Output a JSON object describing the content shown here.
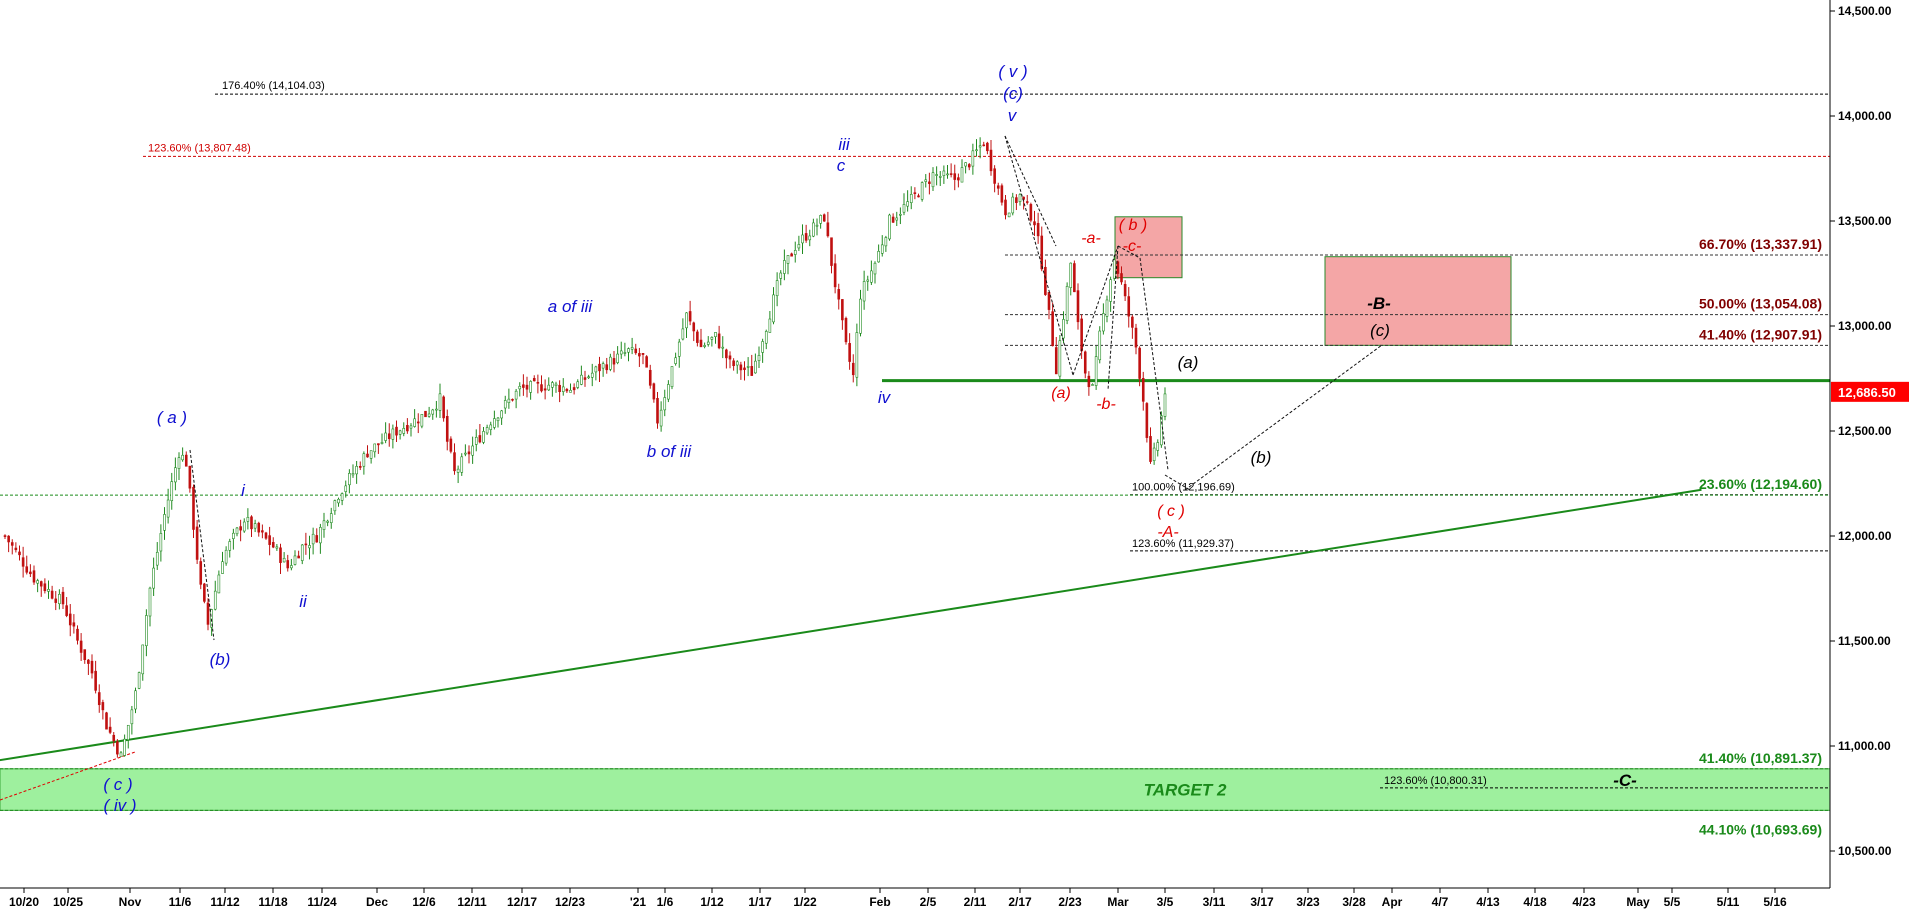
{
  "chart_data": {
    "type": "candlestick",
    "y_axis": {
      "ticks": [
        "14,500.00",
        "14,000.00",
        "13,500.00",
        "13,000.00",
        "12,500.00",
        "12,000.00",
        "11,500.00",
        "11,000.00",
        "10,500.00"
      ],
      "range": [
        10400,
        14530
      ],
      "position": "right"
    },
    "x_axis": {
      "ticks": [
        "10/20",
        "10/25",
        "Nov",
        "11/6",
        "11/12",
        "11/18",
        "11/24",
        "Dec",
        "12/6",
        "12/11",
        "12/17",
        "12/23",
        "'21",
        "1/6",
        "1/12",
        "1/17",
        "1/22",
        "Feb",
        "2/5",
        "2/11",
        "2/17",
        "2/23",
        "Mar",
        "3/5",
        "3/11",
        "3/17",
        "3/23",
        "3/28",
        "Apr",
        "4/7",
        "4/13",
        "4/18",
        "4/23",
        "May",
        "5/5",
        "5/11",
        "5/16"
      ]
    },
    "last_price": {
      "label": "12,686.50",
      "value": 12686.5,
      "color": "#ff0000"
    },
    "price_path": [
      {
        "day": 0,
        "close": 12000
      },
      {
        "day": 4,
        "close": 11800
      },
      {
        "day": 8,
        "close": 11680
      },
      {
        "day": 10,
        "close": 11500
      },
      {
        "day": 12,
        "close": 11350
      },
      {
        "day": 14,
        "close": 11100
      },
      {
        "day": 16,
        "close": 10950
      },
      {
        "day": 18,
        "close": 11250
      },
      {
        "day": 20,
        "close": 11750
      },
      {
        "day": 22,
        "close": 12100
      },
      {
        "day": 24,
        "close": 12400
      },
      {
        "day": 25,
        "close": 12350
      },
      {
        "day": 27,
        "close": 11750
      },
      {
        "day": 28,
        "close": 11580
      },
      {
        "day": 30,
        "close": 11900
      },
      {
        "day": 33,
        "close": 12080
      },
      {
        "day": 37,
        "close": 11950
      },
      {
        "day": 39,
        "close": 11850
      },
      {
        "day": 41,
        "close": 11950
      },
      {
        "day": 43,
        "close": 12000
      },
      {
        "day": 46,
        "close": 12200
      },
      {
        "day": 50,
        "close": 12400
      },
      {
        "day": 54,
        "close": 12500
      },
      {
        "day": 58,
        "close": 12580
      },
      {
        "day": 60,
        "close": 12650
      },
      {
        "day": 61,
        "close": 12450
      },
      {
        "day": 62,
        "close": 12300
      },
      {
        "day": 64,
        "close": 12400
      },
      {
        "day": 67,
        "close": 12550
      },
      {
        "day": 71,
        "close": 12700
      },
      {
        "day": 75,
        "close": 12720
      },
      {
        "day": 78,
        "close": 12700
      },
      {
        "day": 82,
        "close": 12800
      },
      {
        "day": 86,
        "close": 12880
      },
      {
        "day": 88,
        "close": 12850
      },
      {
        "day": 89,
        "close": 12700
      },
      {
        "day": 90,
        "close": 12550
      },
      {
        "day": 92,
        "close": 12800
      },
      {
        "day": 94,
        "close": 13050
      },
      {
        "day": 96,
        "close": 12900
      },
      {
        "day": 98,
        "close": 12950
      },
      {
        "day": 100,
        "close": 12820
      },
      {
        "day": 103,
        "close": 12780
      },
      {
        "day": 105,
        "close": 13000
      },
      {
        "day": 107,
        "close": 13250
      },
      {
        "day": 109,
        "close": 13380
      },
      {
        "day": 111,
        "close": 13450
      },
      {
        "day": 113,
        "close": 13520
      },
      {
        "day": 114,
        "close": 13300
      },
      {
        "day": 115,
        "close": 13100
      },
      {
        "day": 116,
        "close": 12900
      },
      {
        "day": 117,
        "close": 12760
      },
      {
        "day": 118,
        "close": 13150
      },
      {
        "day": 120,
        "close": 13300
      },
      {
        "day": 122,
        "close": 13500
      },
      {
        "day": 125,
        "close": 13600
      },
      {
        "day": 128,
        "close": 13720
      },
      {
        "day": 131,
        "close": 13700
      },
      {
        "day": 133,
        "close": 13780
      },
      {
        "day": 135,
        "close": 13880
      },
      {
        "day": 137,
        "close": 13650
      },
      {
        "day": 138,
        "close": 13550
      },
      {
        "day": 140,
        "close": 13620
      },
      {
        "day": 142,
        "close": 13500
      },
      {
        "day": 143,
        "close": 13300
      },
      {
        "day": 144,
        "close": 13050
      },
      {
        "day": 145,
        "close": 12800
      },
      {
        "day": 146,
        "close": 13050
      },
      {
        "day": 147,
        "close": 13300
      },
      {
        "day": 148,
        "close": 13000
      },
      {
        "day": 149,
        "close": 12780
      },
      {
        "day": 150,
        "close": 12700
      },
      {
        "day": 151,
        "close": 12950
      },
      {
        "day": 152,
        "close": 13150
      },
      {
        "day": 153,
        "close": 13320
      },
      {
        "day": 154,
        "close": 13200
      },
      {
        "day": 155,
        "close": 13050
      },
      {
        "day": 156,
        "close": 12900
      },
      {
        "day": 157,
        "close": 12650
      },
      {
        "day": 158,
        "close": 12330
      },
      {
        "day": 159,
        "close": 12450
      },
      {
        "day": 160,
        "close": 12686
      }
    ],
    "trendlines": [
      {
        "name": "rising support",
        "from": {
          "day": -3,
          "value": 10920
        },
        "to": {
          "day": 234,
          "value": 12220
        },
        "color": "#1a8a1a"
      },
      {
        "name": "horizontal level",
        "from": {
          "day": 118,
          "value": 12740
        },
        "to": {
          "day": 240,
          "value": 12740
        },
        "color": "#1a8a1a"
      }
    ],
    "fib_levels": [
      {
        "label": "176.40% (14,104.03)",
        "value": 14104.03,
        "color": "#000000",
        "size": "small"
      },
      {
        "label": "123.60% (13,807.48)",
        "value": 13807.48,
        "color": "#d00000",
        "size": "small"
      },
      {
        "label": "66.70% (13,337.91)",
        "value": 13337.91,
        "color": "#800000",
        "size": "big"
      },
      {
        "label": "50.00% (13,054.08)",
        "value": 13054.08,
        "color": "#800000",
        "size": "big"
      },
      {
        "label": "41.40% (12,907.91)",
        "value": 12907.91,
        "color": "#800000",
        "size": "big"
      },
      {
        "label": "100.00% (12,196.69)",
        "value": 12196.69,
        "color": "#000000",
        "size": "small"
      },
      {
        "label": "23.60% (12,194.60)",
        "value": 12194.6,
        "color": "#1a8a1a",
        "size": "big"
      },
      {
        "label": "123.60% (11,929.37)",
        "value": 11929.37,
        "color": "#000000",
        "size": "small"
      },
      {
        "label": "41.40% (10,891.37)",
        "value": 10891.37,
        "color": "#1a8a1a",
        "size": "big"
      },
      {
        "label": "123.60% (10,800.31)",
        "value": 10800.31,
        "color": "#000000",
        "size": "small"
      },
      {
        "label": "44.10% (10,693.69)",
        "value": 10693.69,
        "color": "#1a8a1a",
        "size": "big"
      }
    ],
    "zones": [
      {
        "label": "TARGET 2",
        "from": 10693.69,
        "to": 10891.37,
        "color": "#9ef09e"
      },
      {
        "label": "B target box",
        "from": 12907.91,
        "to": 13330,
        "color": "#f4a6a6"
      },
      {
        "label": "(b) box",
        "from": 13230,
        "to": 13520,
        "color": "#f4a6a6"
      }
    ],
    "wave_labels": [
      {
        "text": "( c )",
        "color": "blue"
      },
      {
        "text": "( iv )",
        "color": "blue"
      },
      {
        "text": "( a )",
        "color": "blue"
      },
      {
        "text": "(b)",
        "color": "blue"
      },
      {
        "text": "i",
        "color": "blue"
      },
      {
        "text": "ii",
        "color": "blue"
      },
      {
        "text": "a of iii",
        "color": "blue"
      },
      {
        "text": "b of iii",
        "color": "blue"
      },
      {
        "text": "iii",
        "color": "blue"
      },
      {
        "text": "c",
        "color": "blue"
      },
      {
        "text": "iv",
        "color": "blue"
      },
      {
        "text": "( v )",
        "color": "blue"
      },
      {
        "text": "(c)",
        "color": "blue"
      },
      {
        "text": "v",
        "color": "blue"
      },
      {
        "text": "-a-",
        "color": "red"
      },
      {
        "text": "( b )",
        "color": "red"
      },
      {
        "text": "-c-",
        "color": "red"
      },
      {
        "text": "(a)",
        "color": "red"
      },
      {
        "text": "-b-",
        "color": "red"
      },
      {
        "text": "( c )",
        "color": "red"
      },
      {
        "text": "-A-",
        "color": "red"
      },
      {
        "text": "(a)",
        "color": "black"
      },
      {
        "text": "(b)",
        "color": "black"
      },
      {
        "text": "-B-",
        "color": "black"
      },
      {
        "text": "(c)",
        "color": "black"
      },
      {
        "text": "-C-",
        "color": "black"
      }
    ],
    "annotations": [
      "TARGET 2"
    ]
  }
}
